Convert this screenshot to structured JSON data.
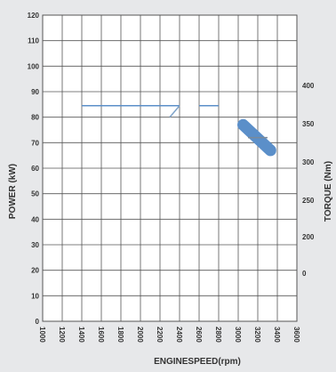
{
  "chart_data": {
    "type": "line",
    "title": "",
    "xlabel": "ENGINESPEED(rpm)",
    "ylabel_left": "POWER (kW)",
    "ylabel_right": "TORQUE (Nm)",
    "x_ticks": [
      1000,
      1200,
      1400,
      1600,
      1800,
      2000,
      2200,
      2400,
      2600,
      2800,
      3000,
      3200,
      3400,
      3600
    ],
    "y_left_ticks": [
      0,
      10,
      20,
      30,
      40,
      50,
      60,
      70,
      80,
      90,
      100,
      110,
      120
    ],
    "y_right_ticks": [
      0,
      200,
      250,
      300,
      350,
      400
    ],
    "xlim": [
      1000,
      3600
    ],
    "ylim_left": [
      0,
      120
    ],
    "grid": true,
    "legend": "none",
    "series": [
      {
        "axis": "left",
        "style": "line",
        "color": "#5b8fc9",
        "segments": [
          [
            [
              1400,
              84.5
            ],
            [
              2400,
              84.5
            ]
          ],
          [
            [
              2600,
              84.5
            ],
            [
              2800,
              84.5
            ]
          ]
        ]
      },
      {
        "axis": "left",
        "style": "line",
        "color": "#7fa3c9",
        "segments": [
          [
            [
              2300,
              80
            ],
            [
              2400,
              84.5
            ]
          ]
        ]
      },
      {
        "axis": "left",
        "style": "band",
        "color": "#5b8fc9",
        "segments": [
          [
            [
              3050,
              77
            ],
            [
              3330,
              67
            ]
          ]
        ]
      },
      {
        "axis": "left",
        "style": "line",
        "color": "#7a8a9a",
        "segments": [
          [
            [
              3100,
              72
            ],
            [
              3300,
              72
            ]
          ]
        ]
      }
    ]
  }
}
